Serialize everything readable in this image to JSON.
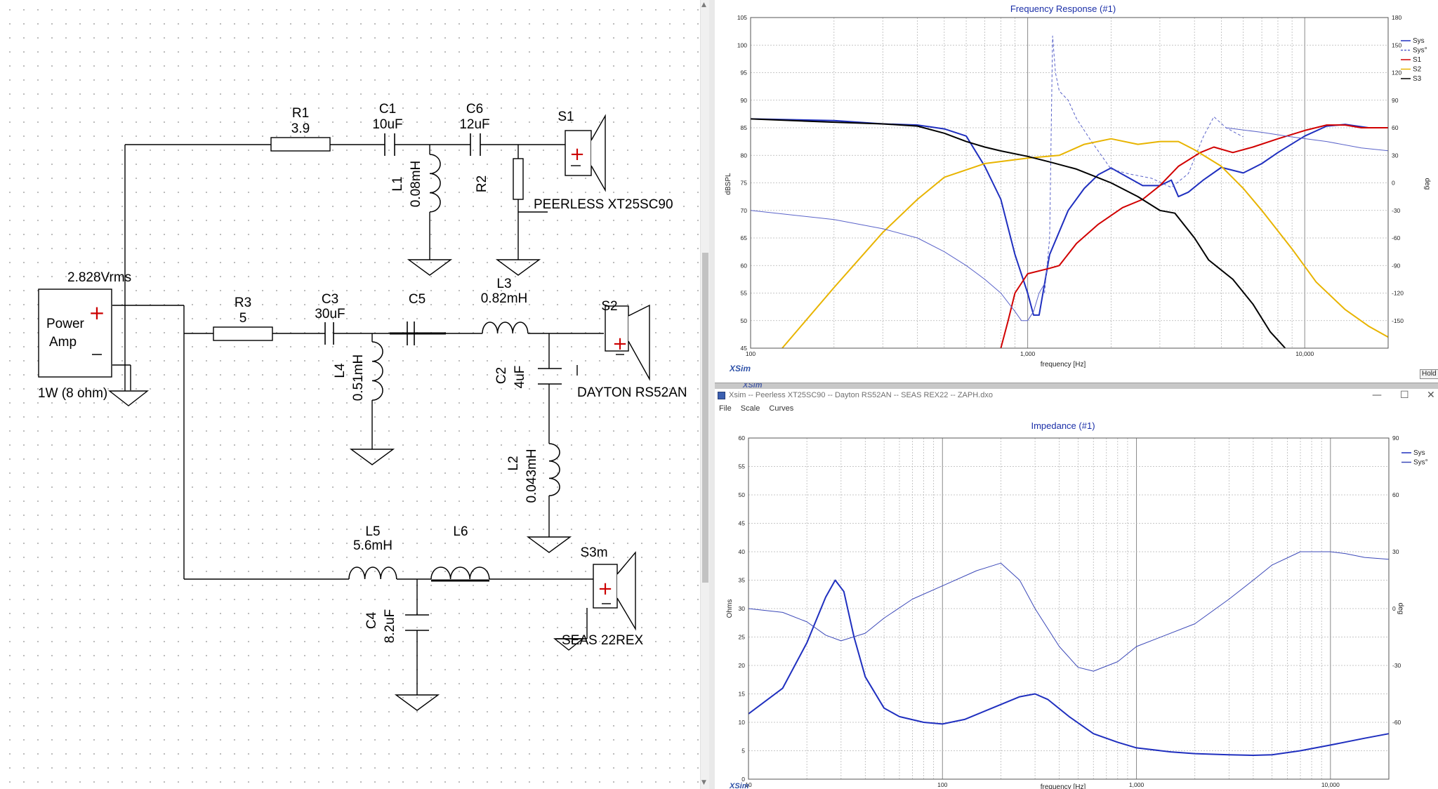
{
  "schematic": {
    "source": {
      "voltage": "2.828Vrms",
      "name_line1": "Power",
      "name_line2": "Amp",
      "power": "1W (8 ohm)"
    },
    "components": {
      "R1": {
        "name": "R1",
        "value": "3.9"
      },
      "C1": {
        "name": "C1",
        "value": "10uF"
      },
      "C6": {
        "name": "C6",
        "value": "12uF"
      },
      "L1": {
        "name": "L1",
        "value": "0.08mH"
      },
      "R2": {
        "name": "R2",
        "value": ""
      },
      "R3": {
        "name": "R3",
        "value": "5"
      },
      "C3": {
        "name": "C3",
        "value": "30uF"
      },
      "C5": {
        "name": "C5",
        "value": ""
      },
      "L3": {
        "name": "L3",
        "value": "0.82mH"
      },
      "L4": {
        "name": "L4",
        "value": "0.51mH"
      },
      "C2": {
        "name": "C2",
        "value": "4uF"
      },
      "L2": {
        "name": "L2",
        "value": "0.043mH"
      },
      "L5": {
        "name": "L5",
        "value": "5.6mH"
      },
      "L6": {
        "name": "L6",
        "value": ""
      },
      "C4": {
        "name": "C4",
        "value": "8.2uF"
      }
    },
    "speakers": {
      "S1": {
        "name": "S1",
        "model": "PEERLESS  XT25SC90"
      },
      "S2": {
        "name": "S2",
        "model": "DAYTON RS52AN"
      },
      "S3": {
        "name": "S3m",
        "model": "SEAS 22REX"
      }
    }
  },
  "frequency_window": {
    "label": "XSim",
    "button": "Hold"
  },
  "impedance_window": {
    "title": "Xsim -- Peerless XT25SC90 -- Dayton RS52AN -- SEAS REX22 --  ZAPH.dxo",
    "menu": [
      "File",
      "Scale",
      "Curves"
    ],
    "label": "XSim",
    "window_controls": {
      "minimize": "—",
      "maximize": "☐",
      "close": "✕"
    }
  },
  "chart_data": [
    {
      "type": "line",
      "title": "Frequency Response (#1)",
      "xlabel": "frequency [Hz]",
      "ylabel": "dBSPL",
      "y2label": "deg",
      "x_scale": "log",
      "xlim": [
        100,
        20000
      ],
      "ylim": [
        45,
        105
      ],
      "y2lim": [
        -180,
        180
      ],
      "xtick_labels": [
        "100",
        "1,000",
        "10,000"
      ],
      "ytick_labels": [
        "45",
        "50",
        "55",
        "60",
        "65",
        "70",
        "75",
        "80",
        "85",
        "90",
        "95",
        "100",
        "105"
      ],
      "y2tick_labels": [
        "-150",
        "-120",
        "-90",
        "-60",
        "-30",
        "0",
        "30",
        "60",
        "90",
        "120",
        "150",
        "180"
      ],
      "legend_position": "right",
      "grid": true,
      "series": [
        {
          "name": "Sys",
          "axis": "left",
          "color": "#1f2fbf",
          "style": "solid",
          "width": 2,
          "points": [
            [
              100,
              86.6
            ],
            [
              200,
              86.3
            ],
            [
              300,
              85.7
            ],
            [
              400,
              85.5
            ],
            [
              500,
              84.8
            ],
            [
              600,
              83.5
            ],
            [
              700,
              78
            ],
            [
              800,
              72
            ],
            [
              900,
              62
            ],
            [
              1000,
              55
            ],
            [
              1050,
              51
            ],
            [
              1100,
              51
            ],
            [
              1200,
              62
            ],
            [
              1400,
              70
            ],
            [
              1600,
              74
            ],
            [
              1800,
              76.5
            ],
            [
              2000,
              77.7
            ],
            [
              2300,
              76
            ],
            [
              2600,
              74.5
            ],
            [
              3000,
              74.5
            ],
            [
              3300,
              75.5
            ],
            [
              3500,
              72.5
            ],
            [
              3800,
              73.3
            ],
            [
              4300,
              75.5
            ],
            [
              5000,
              77.8
            ],
            [
              6000,
              76.8
            ],
            [
              7000,
              78.5
            ],
            [
              8000,
              80.5
            ],
            [
              10000,
              83.5
            ],
            [
              12000,
              85.3
            ],
            [
              14000,
              85.6
            ],
            [
              17000,
              85
            ],
            [
              20000,
              85
            ]
          ]
        },
        {
          "name": "Sys°",
          "axis": "right",
          "color": "#5a63c9",
          "style": "dashed",
          "width": 1,
          "points": [
            [
              1150,
              -120
            ],
            [
              1200,
              -60
            ],
            [
              1230,
              160
            ],
            [
              1260,
              120
            ],
            [
              1300,
              100
            ],
            [
              1400,
              90
            ],
            [
              1500,
              70
            ],
            [
              1700,
              45
            ],
            [
              2000,
              15
            ],
            [
              2300,
              10
            ],
            [
              2800,
              5
            ],
            [
              3300,
              -5
            ],
            [
              3800,
              10
            ],
            [
              4300,
              50
            ],
            [
              4700,
              72
            ],
            [
              5200,
              60
            ],
            [
              6000,
              50
            ]
          ]
        },
        {
          "name": "S1",
          "axis": "left",
          "color": "#d10000",
          "style": "solid",
          "width": 2,
          "points": [
            [
              800,
              45
            ],
            [
              850,
              50
            ],
            [
              900,
              55
            ],
            [
              1000,
              58.5
            ],
            [
              1200,
              59.5
            ],
            [
              1300,
              60
            ],
            [
              1500,
              64
            ],
            [
              1800,
              67.5
            ],
            [
              2200,
              70.5
            ],
            [
              2600,
              72
            ],
            [
              3000,
              74.5
            ],
            [
              3500,
              78
            ],
            [
              4200,
              80.5
            ],
            [
              4700,
              81.5
            ],
            [
              5500,
              80.5
            ],
            [
              6500,
              81.5
            ],
            [
              8000,
              83
            ],
            [
              10000,
              84.5
            ],
            [
              12000,
              85.5
            ],
            [
              14000,
              85.5
            ],
            [
              16000,
              85
            ],
            [
              20000,
              85
            ]
          ]
        },
        {
          "name": "S2",
          "axis": "left",
          "color": "#e8b400",
          "style": "solid",
          "width": 2,
          "points": [
            [
              130,
              45
            ],
            [
              200,
              56
            ],
            [
              300,
              66
            ],
            [
              400,
              72
            ],
            [
              500,
              76
            ],
            [
              700,
              78.5
            ],
            [
              1000,
              79.5
            ],
            [
              1300,
              80
            ],
            [
              1600,
              82
            ],
            [
              2000,
              83
            ],
            [
              2500,
              82
            ],
            [
              3000,
              82.5
            ],
            [
              3500,
              82.5
            ],
            [
              4000,
              81
            ],
            [
              5000,
              78
            ],
            [
              6000,
              74
            ],
            [
              7000,
              70
            ],
            [
              9000,
              63
            ],
            [
              11000,
              57
            ],
            [
              14000,
              52
            ],
            [
              17000,
              49
            ],
            [
              20000,
              47
            ]
          ]
        },
        {
          "name": "S3",
          "axis": "left",
          "color": "#000000",
          "style": "solid",
          "width": 2,
          "points": [
            [
              100,
              86.6
            ],
            [
              200,
              86
            ],
            [
              300,
              85.7
            ],
            [
              400,
              85.3
            ],
            [
              500,
              84
            ],
            [
              600,
              82.5
            ],
            [
              700,
              81.5
            ],
            [
              800,
              80.8
            ],
            [
              1000,
              79.8
            ],
            [
              1200,
              78.8
            ],
            [
              1500,
              77.5
            ],
            [
              2000,
              75
            ],
            [
              2500,
              72.5
            ],
            [
              3000,
              70
            ],
            [
              3400,
              69.5
            ],
            [
              4000,
              65
            ],
            [
              4500,
              61
            ],
            [
              5500,
              57.5
            ],
            [
              6500,
              53
            ],
            [
              7500,
              48
            ],
            [
              8500,
              45
            ]
          ]
        },
        {
          "name": "Sys° (low)",
          "legend": false,
          "axis": "right",
          "color": "#5a63c9",
          "style": "solid",
          "width": 1,
          "points": [
            [
              100,
              -30
            ],
            [
              200,
              -40
            ],
            [
              300,
              -50
            ],
            [
              400,
              -60
            ],
            [
              500,
              -75
            ],
            [
              600,
              -90
            ],
            [
              700,
              -105
            ],
            [
              800,
              -120
            ],
            [
              900,
              -140
            ],
            [
              950,
              -150
            ],
            [
              1000,
              -150
            ],
            [
              1050,
              -140
            ],
            [
              1100,
              -120
            ],
            [
              1150,
              -110
            ]
          ]
        },
        {
          "name": "Sys° (high)",
          "legend": false,
          "axis": "right",
          "color": "#5a63c9",
          "style": "solid",
          "width": 1,
          "points": [
            [
              5200,
              60
            ],
            [
              7000,
              55
            ],
            [
              9000,
              50
            ],
            [
              12000,
              45
            ],
            [
              16000,
              38
            ],
            [
              20000,
              35
            ]
          ]
        }
      ]
    },
    {
      "type": "line",
      "title": "Impedance (#1)",
      "xlabel": "frequency [Hz]",
      "ylabel": "Ohms",
      "y2label": "deg",
      "x_scale": "log",
      "xlim": [
        10,
        20000
      ],
      "ylim": [
        0,
        60
      ],
      "y2lim": [
        -90,
        90
      ],
      "xtick_labels": [
        "10",
        "100",
        "1,000",
        "10,000"
      ],
      "ytick_labels": [
        "0",
        "5",
        "10",
        "15",
        "20",
        "25",
        "30",
        "35",
        "40",
        "45",
        "50",
        "55",
        "60"
      ],
      "y2tick_labels": [
        "-60",
        "-30",
        "0",
        "30",
        "60",
        "90"
      ],
      "legend_position": "right",
      "grid": true,
      "series": [
        {
          "name": "Sys",
          "axis": "left",
          "color": "#1f2fbf",
          "style": "solid",
          "width": 2,
          "points": [
            [
              10,
              11.5
            ],
            [
              15,
              16
            ],
            [
              20,
              24
            ],
            [
              25,
              32
            ],
            [
              28,
              35
            ],
            [
              31,
              33
            ],
            [
              35,
              25
            ],
            [
              40,
              18
            ],
            [
              50,
              12.5
            ],
            [
              60,
              11
            ],
            [
              80,
              10
            ],
            [
              100,
              9.7
            ],
            [
              130,
              10.5
            ],
            [
              180,
              12.5
            ],
            [
              250,
              14.5
            ],
            [
              300,
              15
            ],
            [
              350,
              14
            ],
            [
              450,
              11
            ],
            [
              600,
              8
            ],
            [
              800,
              6.5
            ],
            [
              1000,
              5.5
            ],
            [
              1500,
              4.8
            ],
            [
              2000,
              4.5
            ],
            [
              3000,
              4.3
            ],
            [
              4000,
              4.2
            ],
            [
              5000,
              4.3
            ],
            [
              7000,
              5
            ],
            [
              10000,
              6
            ],
            [
              15000,
              7.2
            ],
            [
              20000,
              8
            ]
          ]
        },
        {
          "name": "Sys°",
          "axis": "right",
          "color": "#3b48b8",
          "style": "solid",
          "width": 1,
          "points": [
            [
              10,
              0
            ],
            [
              15,
              -2
            ],
            [
              20,
              -7
            ],
            [
              25,
              -14
            ],
            [
              30,
              -17
            ],
            [
              40,
              -13
            ],
            [
              50,
              -5
            ],
            [
              70,
              5
            ],
            [
              100,
              12
            ],
            [
              150,
              20
            ],
            [
              200,
              24
            ],
            [
              250,
              15
            ],
            [
              300,
              0
            ],
            [
              400,
              -20
            ],
            [
              500,
              -31
            ],
            [
              600,
              -33
            ],
            [
              800,
              -28
            ],
            [
              1000,
              -20
            ],
            [
              2000,
              -8
            ],
            [
              3000,
              5
            ],
            [
              4000,
              15
            ],
            [
              5000,
              23
            ],
            [
              7000,
              30
            ],
            [
              10000,
              30
            ],
            [
              12000,
              29
            ],
            [
              15000,
              27
            ],
            [
              20000,
              26
            ]
          ]
        }
      ]
    }
  ]
}
